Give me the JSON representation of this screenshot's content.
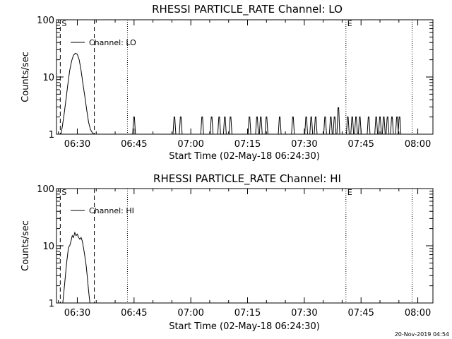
{
  "footer": {
    "timestamp": "20-Nov-2019 04:54"
  },
  "chart_data": [
    {
      "type": "line",
      "title": "RHESSI PARTICLE_RATE Channel: LO",
      "xlabel": "Start Time (02-May-18 06:24:30)",
      "ylabel": "Counts/sec",
      "yscale": "log",
      "xlim": [
        "06:24:30",
        "08:04:00"
      ],
      "ylim": [
        1,
        100
      ],
      "x_ticks": [
        "06:30",
        "06:45",
        "07:00",
        "07:15",
        "07:30",
        "07:45",
        "08:00"
      ],
      "y_ticks": [
        "1",
        "10",
        "100"
      ],
      "legend": {
        "label": "Channel: LO",
        "placement": "top-left"
      },
      "markers": [
        {
          "label": "S",
          "time": "06:25:30",
          "style": "dashed"
        },
        {
          "label": "",
          "time": "06:34:30",
          "style": "dashed"
        },
        {
          "label": "",
          "time": "06:43:15",
          "style": "dotted"
        },
        {
          "label": "E",
          "time": "07:41:00",
          "style": "dotted"
        },
        {
          "label": "",
          "time": "07:58:30",
          "style": "dotted"
        }
      ],
      "series": [
        {
          "name": "Channel: LO",
          "x": [
            "06:25:40",
            "06:26:00",
            "06:26:30",
            "06:27:00",
            "06:27:30",
            "06:28:00",
            "06:28:30",
            "06:29:00",
            "06:29:30",
            "06:30:00",
            "06:30:30",
            "06:31:00",
            "06:31:30",
            "06:32:00",
            "06:32:30",
            "06:33:00",
            "06:33:30",
            "06:34:00",
            "06:34:30"
          ],
          "y": [
            1.0,
            1.3,
            2.2,
            4.0,
            7.5,
            13,
            19,
            24,
            26,
            25,
            20,
            13,
            7.5,
            4.5,
            2.6,
            1.6,
            1.2,
            1.05,
            1.0
          ]
        }
      ],
      "spikes": {
        "baseline": 1,
        "times": [
          "06:45:00",
          "06:55:40",
          "06:57:20",
          "07:03:00",
          "07:05:30",
          "07:07:30",
          "07:09:00",
          "07:10:30",
          "07:15:30",
          "07:17:30",
          "07:18:30",
          "07:20:00",
          "07:23:30",
          "07:27:00",
          "07:30:30",
          "07:31:50",
          "07:33:00",
          "07:35:30",
          "07:37:00",
          "07:38:00",
          "07:39:00",
          "07:41:30",
          "07:42:40",
          "07:43:40",
          "07:44:40",
          "07:47:00",
          "07:49:00",
          "07:50:00",
          "07:51:00",
          "07:52:00",
          "07:53:10",
          "07:54:30",
          "07:55:10"
        ],
        "values": [
          2,
          2,
          2,
          2,
          2,
          2,
          2,
          2,
          2,
          2,
          2,
          2,
          2,
          2,
          2,
          2,
          2,
          2,
          2,
          2,
          2.9,
          2,
          2,
          2,
          2,
          2,
          2,
          2,
          2,
          2,
          2,
          2,
          2
        ]
      }
    },
    {
      "type": "line",
      "title": "RHESSI PARTICLE_RATE Channel: HI",
      "xlabel": "Start Time (02-May-18 06:24:30)",
      "ylabel": "Counts/sec",
      "yscale": "log",
      "xlim": [
        "06:24:30",
        "08:04:00"
      ],
      "ylim": [
        1,
        100
      ],
      "x_ticks": [
        "06:30",
        "06:45",
        "07:00",
        "07:15",
        "07:30",
        "07:45",
        "08:00"
      ],
      "y_ticks": [
        "1",
        "10",
        "100"
      ],
      "legend": {
        "label": "Channel: HI",
        "placement": "top-left"
      },
      "markers": [
        {
          "label": "S",
          "time": "06:25:30",
          "style": "dashed"
        },
        {
          "label": "",
          "time": "06:34:30",
          "style": "dashed"
        },
        {
          "label": "",
          "time": "06:43:15",
          "style": "dotted"
        },
        {
          "label": "E",
          "time": "07:41:00",
          "style": "dotted"
        },
        {
          "label": "",
          "time": "07:58:30",
          "style": "dotted"
        }
      ],
      "series": [
        {
          "name": "Channel: HI",
          "x": [
            "06:26:10",
            "06:26:40",
            "06:27:10",
            "06:27:40",
            "06:28:00",
            "06:28:20",
            "06:28:40",
            "06:29:00",
            "06:29:20",
            "06:29:40",
            "06:30:00",
            "06:30:20",
            "06:30:40",
            "06:31:00",
            "06:31:20",
            "06:31:40",
            "06:32:00",
            "06:32:20",
            "06:32:40",
            "06:33:00",
            "06:33:20"
          ],
          "y": [
            1.0,
            2.2,
            5.0,
            9.5,
            10,
            12,
            15,
            14,
            17,
            15,
            16,
            14,
            13,
            14,
            12,
            9,
            6.5,
            4.5,
            2.8,
            1.6,
            1.0
          ]
        }
      ],
      "spikes": {
        "baseline": 1,
        "times": [],
        "values": []
      }
    }
  ]
}
